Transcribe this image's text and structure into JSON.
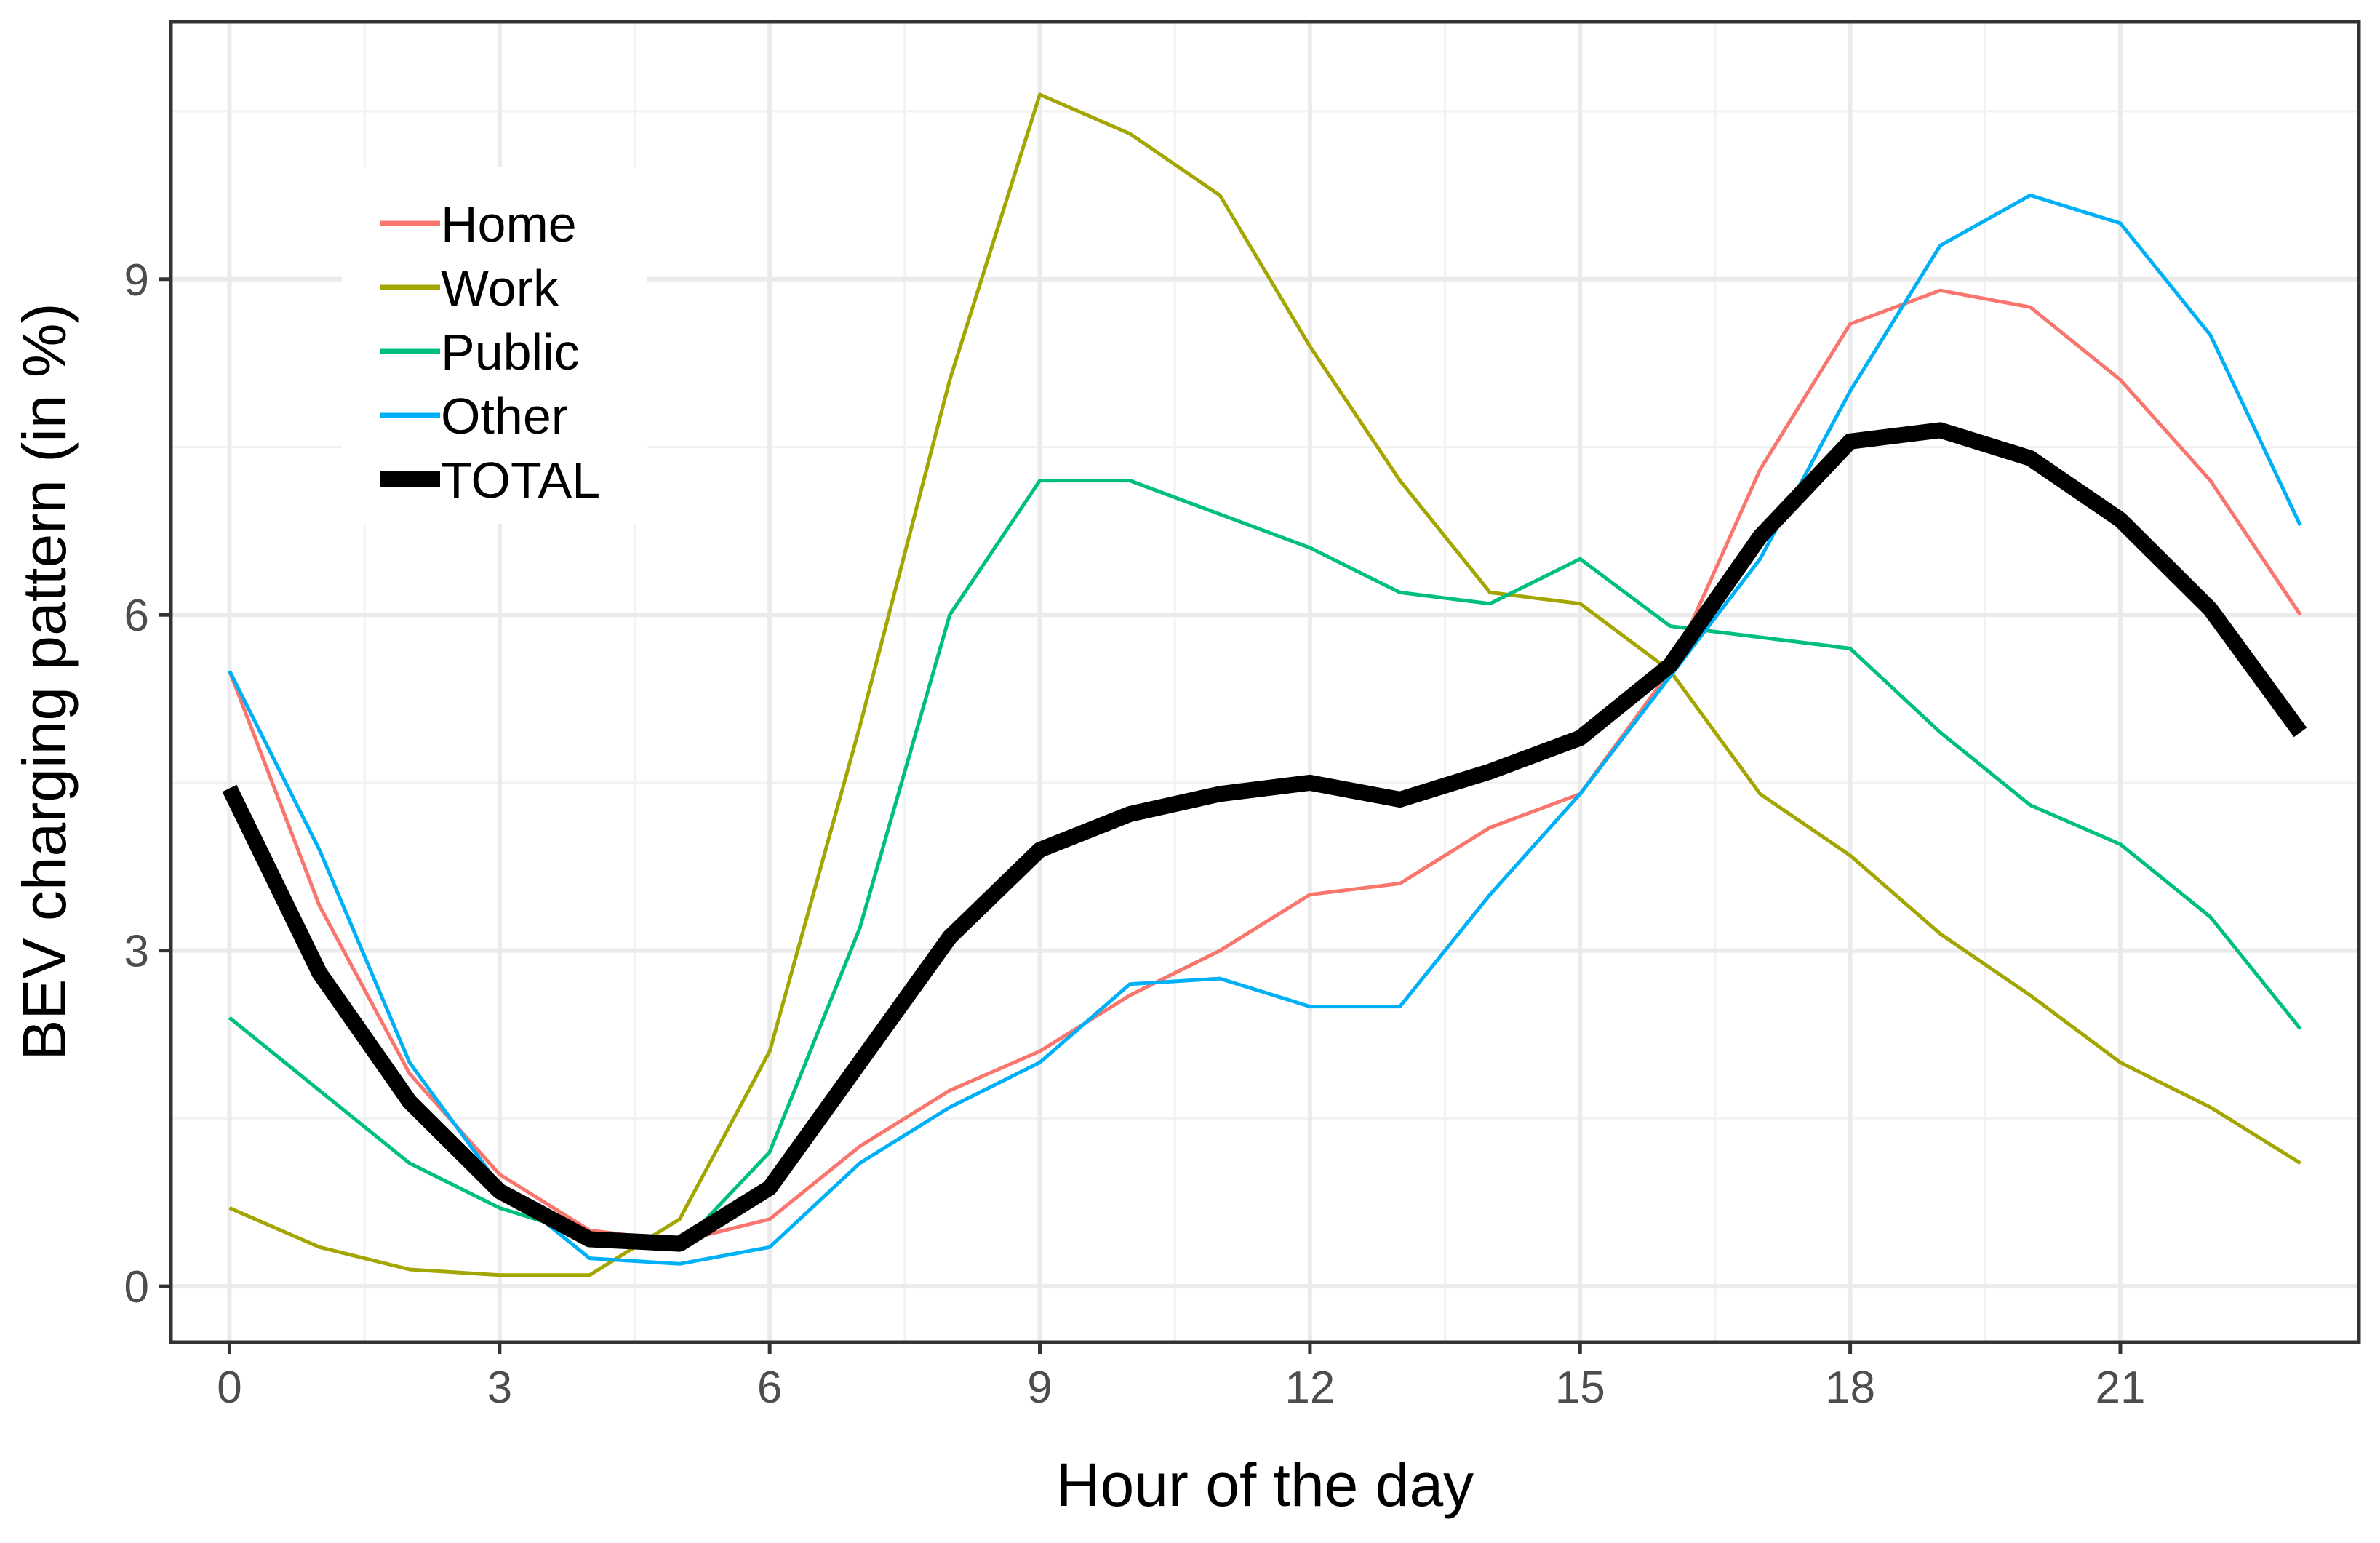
{
  "chart_data": {
    "type": "line",
    "title": "",
    "xlabel": "Hour of the day",
    "ylabel": "BEV charging pattern (in %)",
    "xlim": [
      -0.65,
      23.65
    ],
    "ylim": [
      -0.5,
      11.3
    ],
    "x_ticks": [
      0,
      3,
      6,
      9,
      12,
      15,
      18,
      21
    ],
    "x_tick_labels": [
      "0",
      "3",
      "6",
      "9",
      "12",
      "15",
      "18",
      "21"
    ],
    "y_ticks": [
      0,
      3,
      6,
      9
    ],
    "y_tick_labels": [
      "0",
      "3",
      "6",
      "9"
    ],
    "grid": true,
    "legend_position": "top-left",
    "x": [
      0,
      1,
      2,
      3,
      4,
      5,
      6,
      7,
      8,
      9,
      10,
      11,
      12,
      13,
      14,
      15,
      16,
      17,
      18,
      19,
      20,
      21,
      22,
      23
    ],
    "series": [
      {
        "name": "Home",
        "color": "#F8766D",
        "width": "thin",
        "values": [
          5.5,
          3.4,
          1.9,
          1.0,
          0.5,
          0.4,
          0.6,
          1.25,
          1.75,
          2.1,
          2.6,
          3.0,
          3.5,
          3.6,
          4.1,
          4.4,
          5.5,
          7.3,
          8.6,
          8.9,
          8.75,
          8.1,
          7.2,
          6.0
        ]
      },
      {
        "name": "Work",
        "color": "#A3A500",
        "width": "thin",
        "values": [
          0.7,
          0.35,
          0.15,
          0.1,
          0.1,
          0.6,
          2.1,
          5.0,
          8.1,
          10.65,
          10.3,
          9.75,
          8.4,
          7.2,
          6.2,
          6.1,
          5.5,
          4.4,
          3.85,
          3.15,
          2.6,
          2.0,
          1.6,
          1.1
        ]
      },
      {
        "name": "Public",
        "color": "#00BF7D",
        "width": "thin",
        "values": [
          2.4,
          1.75,
          1.1,
          0.7,
          0.45,
          0.35,
          1.2,
          3.2,
          6.0,
          7.2,
          7.2,
          6.9,
          6.6,
          6.2,
          6.1,
          6.5,
          5.9,
          5.8,
          5.7,
          4.95,
          4.3,
          3.95,
          3.3,
          2.3
        ]
      },
      {
        "name": "Other",
        "color": "#00B0F6",
        "width": "thin",
        "values": [
          5.5,
          3.9,
          2.0,
          0.9,
          0.25,
          0.2,
          0.35,
          1.1,
          1.6,
          2.0,
          2.7,
          2.75,
          2.5,
          2.5,
          3.5,
          4.4,
          5.45,
          6.5,
          8.0,
          9.3,
          9.75,
          9.5,
          8.5,
          6.8
        ]
      },
      {
        "name": "TOTAL",
        "color": "#000000",
        "width": "thick",
        "values": [
          4.45,
          2.8,
          1.65,
          0.85,
          0.42,
          0.38,
          0.88,
          2.0,
          3.12,
          3.9,
          4.22,
          4.4,
          4.5,
          4.35,
          4.6,
          4.9,
          5.55,
          6.7,
          7.55,
          7.65,
          7.4,
          6.85,
          6.05,
          4.95
        ]
      }
    ]
  }
}
